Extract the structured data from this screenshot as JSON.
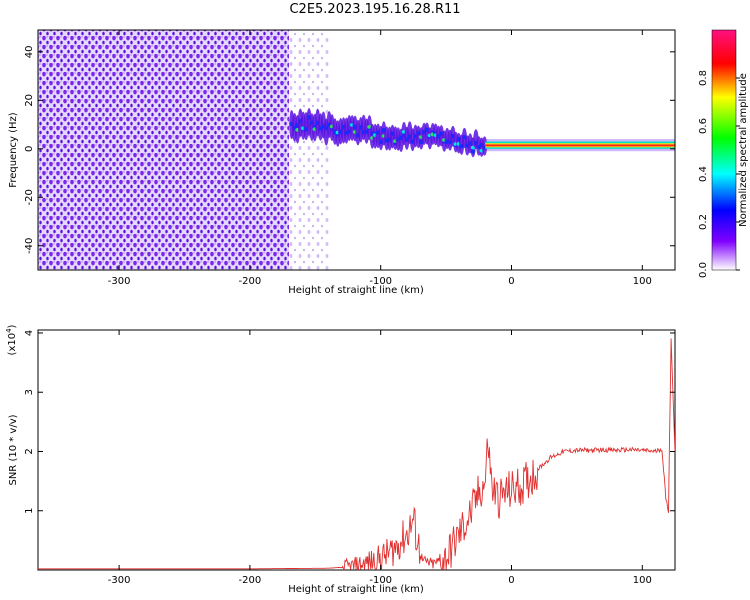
{
  "title": "C2E5.2023.195.16.28.R11",
  "chart_data": [
    {
      "type": "heatmap",
      "xlabel": "Height of straight line (km)",
      "ylabel": "Frequency (Hz)",
      "xlim": [
        -362,
        125
      ],
      "ylim": [
        -50,
        49
      ],
      "xticks": [
        -300,
        -200,
        -100,
        0,
        100
      ],
      "yticks": [
        40,
        20,
        0,
        -20,
        -40
      ],
      "xtick_labels": [
        "-300",
        "-200",
        "-100",
        "0",
        "100"
      ],
      "ytick_labels": [
        "40",
        "20",
        "0",
        "-20",
        "-40"
      ],
      "colorbar": {
        "label": "Normalized spectral amplitude",
        "range": [
          0,
          1
        ],
        "ticks": [
          0.0,
          0.2,
          0.4,
          0.6,
          0.8
        ],
        "tick_labels": [
          "0.0",
          "0.2",
          "0.4",
          "0.6",
          "0.8"
        ]
      },
      "regions": [
        {
          "x": [
            -362,
            -170
          ],
          "f": [
            -50,
            49
          ],
          "amplitude": 0.15
        },
        {
          "x": [
            -170,
            -140
          ],
          "f": [
            -50,
            49
          ],
          "amplitude": 0.05
        },
        {
          "x": [
            -168,
            -20
          ],
          "f": [
            -5,
            15
          ],
          "amplitude": 0.35
        },
        {
          "x": [
            -20,
            125
          ],
          "f": [
            0,
            2
          ],
          "amplitude": 0.9
        }
      ]
    },
    {
      "type": "line",
      "xlabel": "Height of straight line (km)",
      "ylabel": "SNR (10 * v/v)",
      "y_multiplier": "(x10",
      "y_multiplier_exp": "4",
      "y_multiplier_close": ")",
      "xlim": [
        -362,
        125
      ],
      "ylim": [
        0,
        4.05
      ],
      "xticks": [
        -300,
        -200,
        -100,
        0,
        100
      ],
      "yticks": [
        1,
        2,
        3,
        4
      ],
      "xtick_labels": [
        "-300",
        "-200",
        "-100",
        "0",
        "100"
      ],
      "ytick_labels": [
        "1",
        "2",
        "3",
        "4"
      ],
      "color": "#e03030",
      "series": [
        {
          "x": [
            -362,
            -200,
            -140,
            -120,
            -110,
            -100,
            -90,
            -80,
            -75,
            -72,
            -68,
            -60,
            -50,
            -45,
            -40,
            -35,
            -30,
            -25,
            -20,
            -18,
            -15,
            -10,
            -5,
            0,
            10,
            20,
            30,
            40,
            50,
            60,
            70,
            80,
            90,
            100,
            110,
            115,
            118,
            120,
            122,
            125
          ],
          "y": [
            0.02,
            0.02,
            0.03,
            0.06,
            0.12,
            0.2,
            0.35,
            0.6,
            0.85,
            0.5,
            0.15,
            0.1,
            0.2,
            0.4,
            0.6,
            0.8,
            1.0,
            1.3,
            1.5,
            2.2,
            1.4,
            1.2,
            1.3,
            1.35,
            1.45,
            1.7,
            1.9,
            2.0,
            2.02,
            2.02,
            2.03,
            2.02,
            2.03,
            2.02,
            2.0,
            2.05,
            1.2,
            1.0,
            3.9,
            2.0
          ]
        }
      ]
    }
  ]
}
